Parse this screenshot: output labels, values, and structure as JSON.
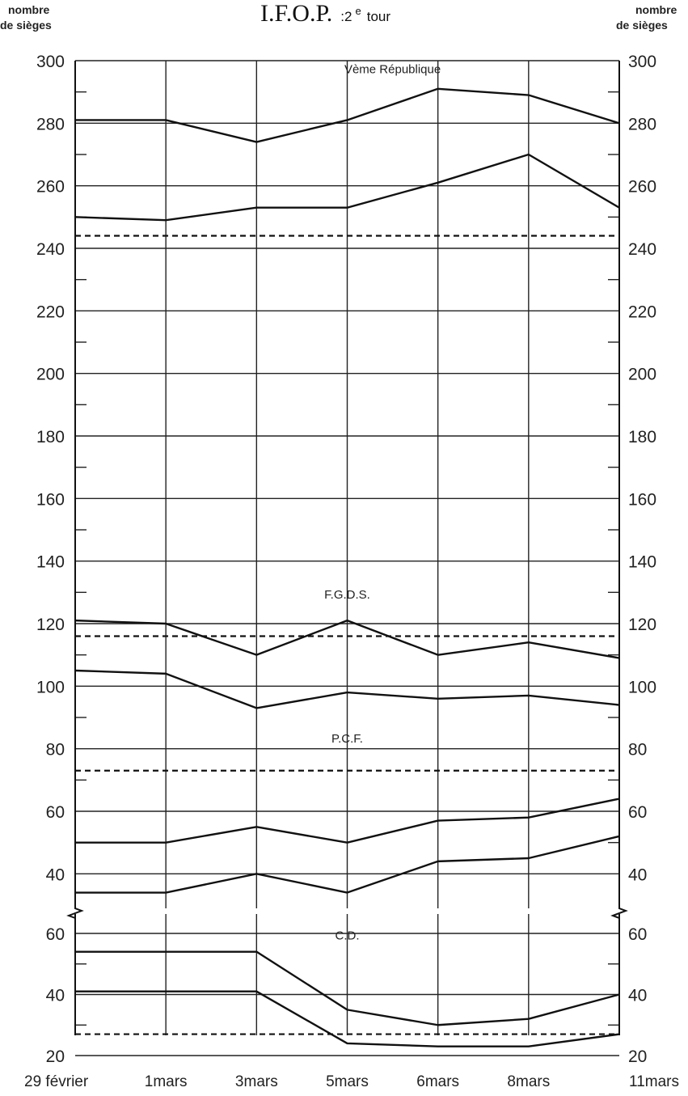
{
  "title": "I.F.O.P.",
  "subtitle_prefix": ":2",
  "subtitle_sup": "e",
  "subtitle_suffix": "tour",
  "left_axis_label_line1": "nombre",
  "left_axis_label_line2": "de sièges",
  "right_axis_label_line1": "nombre",
  "right_axis_label_line2": "de sièges",
  "chart_data": [
    {
      "type": "line",
      "panel": "top",
      "categories": [
        "29 février",
        "1mars",
        "3mars",
        "5mars",
        "6mars",
        "8mars",
        "11mars"
      ],
      "ylim": [
        30,
        300
      ],
      "yticks": [
        40,
        60,
        80,
        100,
        120,
        140,
        160,
        180,
        200,
        220,
        240,
        260,
        280,
        300
      ],
      "grid": true,
      "annotations": [
        {
          "text": "Vème République",
          "x": 3.5,
          "y": 296
        },
        {
          "text": "F.G.D.S.",
          "x": 3.0,
          "y": 128
        },
        {
          "text": "P.C.F.",
          "x": 3.0,
          "y": 82
        }
      ],
      "series": [
        {
          "values": [
            281,
            281,
            274,
            281,
            291,
            289,
            280
          ]
        },
        {
          "values": [
            250,
            249,
            253,
            253,
            261,
            270,
            253
          ]
        },
        {
          "values": [
            121,
            120,
            110,
            121,
            110,
            114,
            109
          ]
        },
        {
          "values": [
            105,
            104,
            93,
            98,
            96,
            97,
            94
          ]
        },
        {
          "values": [
            50,
            50,
            55,
            50,
            57,
            58,
            64
          ]
        },
        {
          "values": [
            34,
            34,
            40,
            34,
            44,
            45,
            52
          ]
        }
      ],
      "reference_lines": [
        {
          "style": "dashed",
          "y": 244
        },
        {
          "style": "dashed",
          "y": 116
        },
        {
          "style": "dashed",
          "y": 73
        }
      ]
    },
    {
      "type": "line",
      "panel": "bottom",
      "categories": [
        "29 février",
        "1mars",
        "3mars",
        "5mars",
        "6mars",
        "8mars",
        "11mars"
      ],
      "ylim": [
        17,
        66
      ],
      "yticks": [
        20,
        40,
        60
      ],
      "grid": true,
      "annotations": [
        {
          "text": "C.D.",
          "x": 3.0,
          "y": 58
        }
      ],
      "series": [
        {
          "values": [
            54,
            54,
            54,
            35,
            30,
            32,
            40
          ]
        },
        {
          "values": [
            41,
            41,
            41,
            24,
            23,
            23,
            27
          ]
        }
      ],
      "reference_lines": [
        {
          "style": "dashed",
          "y": 27
        }
      ]
    }
  ]
}
